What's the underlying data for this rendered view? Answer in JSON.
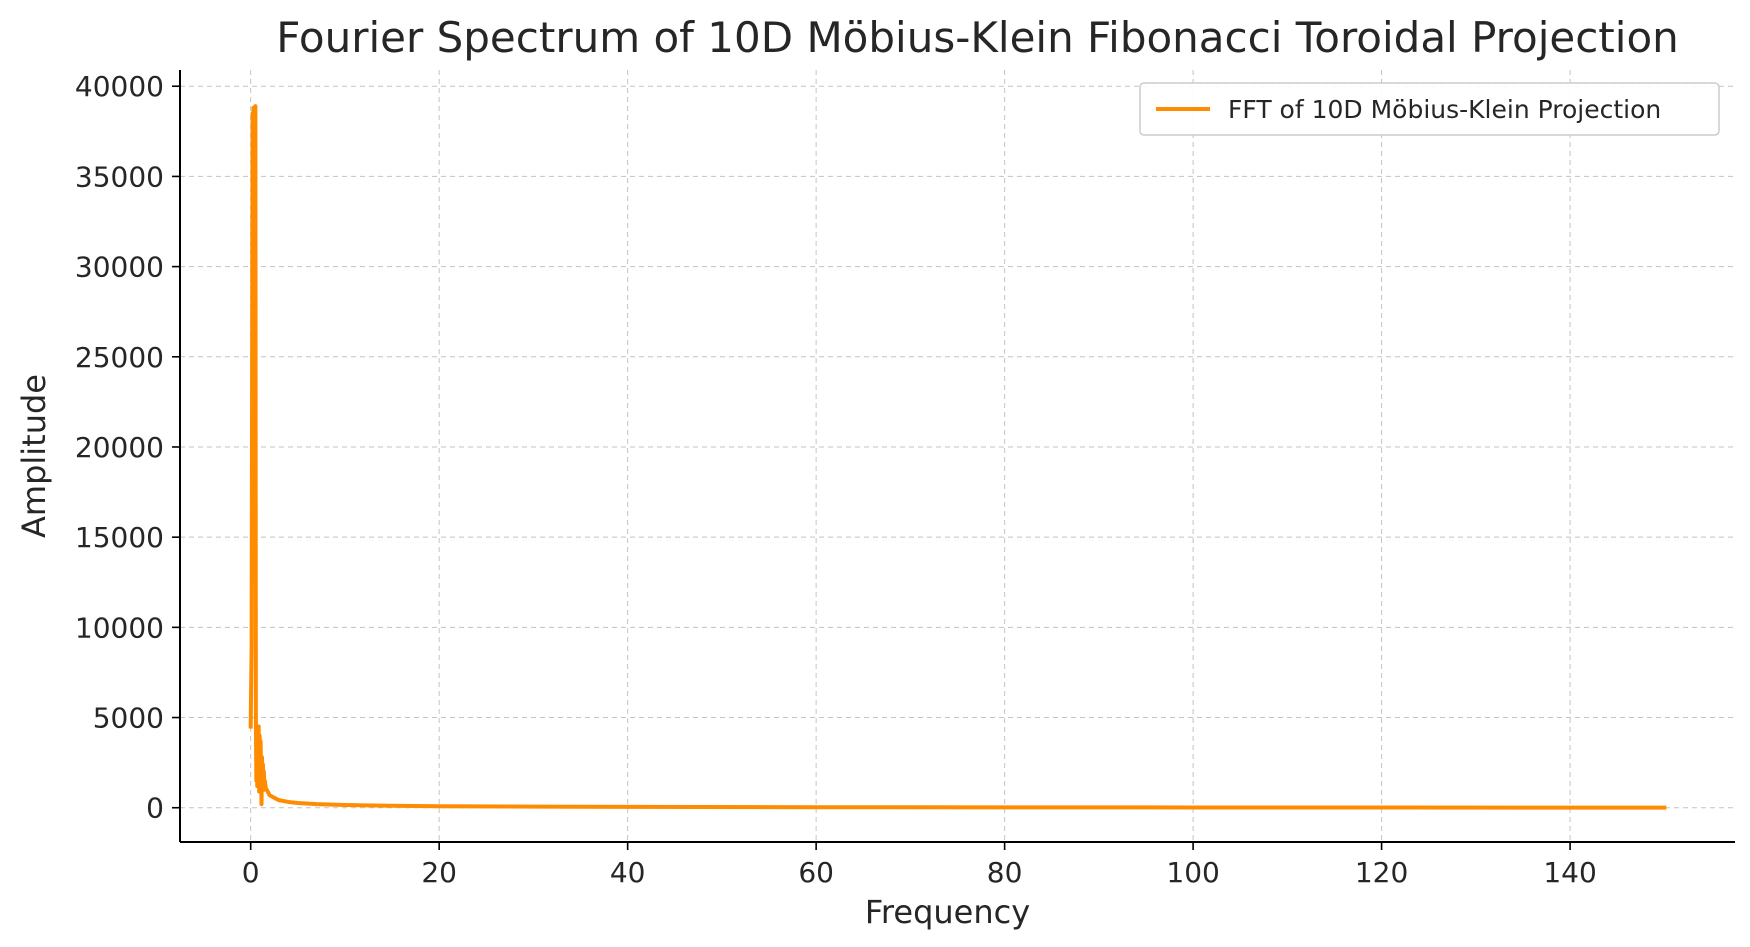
{
  "chart_data": {
    "type": "line",
    "title": "Fourier Spectrum of 10D Möbius-Klein Fibonacci Toroidal Projection",
    "xlabel": "Frequency",
    "ylabel": "Amplitude",
    "xlim": [
      -7.5,
      157.5
    ],
    "ylim": [
      -1900,
      40900
    ],
    "xticks": [
      0,
      20,
      40,
      60,
      80,
      100,
      120,
      140
    ],
    "yticks": [
      0,
      5000,
      10000,
      15000,
      20000,
      25000,
      30000,
      35000,
      40000
    ],
    "grid": true,
    "legend_position": "top-right",
    "colors": {
      "series": "#ff8c00",
      "axis": "#000000",
      "grid": "#b0b0b0",
      "text": "#262626"
    },
    "series": [
      {
        "name": "FFT of 10D Möbius-Klein Projection",
        "x": [
          0,
          0.1,
          0.2,
          0.25,
          0.3,
          0.35,
          0.4,
          0.45,
          0.5,
          0.55,
          0.6,
          0.65,
          0.7,
          0.75,
          0.8,
          0.85,
          0.9,
          0.95,
          1.0,
          1.05,
          1.1,
          1.15,
          1.2,
          1.25,
          1.3,
          1.35,
          1.4,
          1.45,
          1.5,
          1.6,
          1.8,
          2.0,
          2.5,
          3,
          4,
          5,
          7,
          10,
          15,
          20,
          30,
          40,
          60,
          80,
          100,
          120,
          140,
          150
        ],
        "y": [
          4500,
          9000,
          38500,
          25000,
          38800,
          31000,
          38700,
          15000,
          38900,
          5000,
          1500,
          4200,
          1200,
          3600,
          1800,
          4500,
          900,
          4000,
          1500,
          3700,
          2200,
          200,
          2800,
          1300,
          2400,
          1200,
          2000,
          1000,
          1500,
          1100,
          900,
          700,
          550,
          420,
          320,
          260,
          200,
          150,
          110,
          85,
          60,
          45,
          30,
          22,
          16,
          12,
          8,
          6
        ]
      }
    ]
  }
}
